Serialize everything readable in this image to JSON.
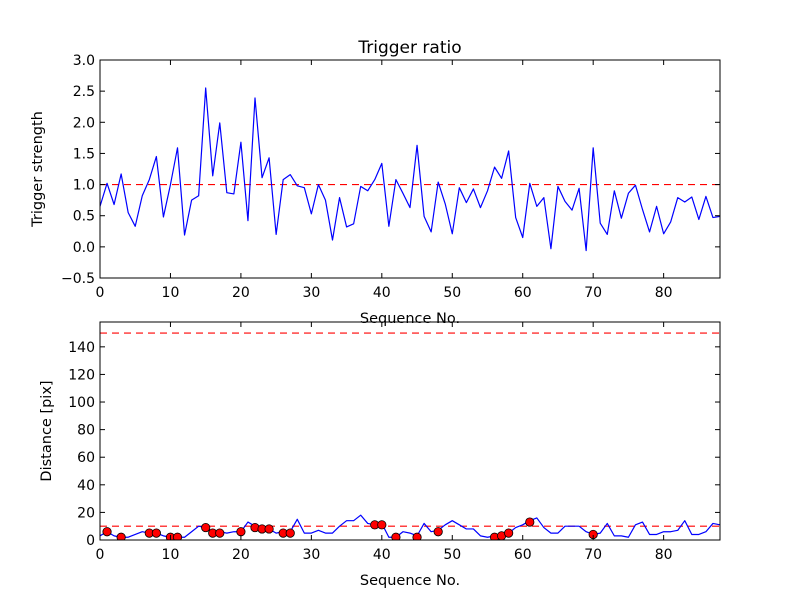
{
  "chart_data": [
    {
      "type": "line",
      "title": "Trigger ratio",
      "xlabel": "Sequence No.",
      "ylabel": "Trigger strength",
      "xlim": [
        0,
        88
      ],
      "ylim": [
        -0.5,
        3.0
      ],
      "xticks": [
        0,
        10,
        20,
        30,
        40,
        50,
        60,
        70,
        80
      ],
      "xtick_labels": [
        "0",
        "10",
        "20",
        "30",
        "40",
        "50",
        "60",
        "70",
        "80"
      ],
      "yticks": [
        -0.5,
        0.0,
        0.5,
        1.0,
        1.5,
        2.0,
        2.5,
        3.0
      ],
      "ytick_labels": [
        "−0.5",
        "0.0",
        "0.5",
        "1.0",
        "1.5",
        "2.0",
        "2.5",
        "3.0"
      ],
      "threshold": 1.0,
      "colors": {
        "line": "#0000ff",
        "threshold": "#ff0000"
      },
      "series": [
        {
          "name": "trigger strength",
          "values": [
            0.65,
            1.02,
            0.68,
            1.17,
            0.55,
            0.33,
            0.82,
            1.08,
            1.45,
            0.48,
            1.0,
            1.59,
            0.19,
            0.75,
            0.82,
            2.55,
            1.14,
            1.99,
            0.87,
            0.85,
            1.68,
            0.42,
            2.39,
            1.11,
            1.43,
            0.2,
            1.08,
            1.16,
            0.98,
            0.95,
            0.53,
            1.0,
            0.75,
            0.11,
            0.79,
            0.32,
            0.37,
            0.97,
            0.9,
            1.08,
            1.34,
            0.33,
            1.08,
            0.86,
            0.63,
            1.63,
            0.49,
            0.24,
            1.04,
            0.69,
            0.21,
            0.95,
            0.71,
            0.93,
            0.63,
            0.9,
            1.28,
            1.1,
            1.54,
            0.47,
            0.15,
            1.02,
            0.65,
            0.79,
            -0.03,
            0.97,
            0.73,
            0.59,
            0.94,
            -0.06,
            1.59,
            0.38,
            0.2,
            0.9,
            0.46,
            0.86,
            0.99,
            0.6,
            0.24,
            0.65,
            0.21,
            0.4,
            0.79,
            0.72,
            0.8,
            0.44,
            0.81,
            0.47,
            0.49
          ]
        }
      ]
    },
    {
      "type": "line",
      "title": "",
      "xlabel": "Sequence No.",
      "ylabel": "Distance [pix]",
      "xlim": [
        0,
        88
      ],
      "ylim": [
        0,
        158
      ],
      "xticks": [
        0,
        10,
        20,
        30,
        40,
        50,
        60,
        70,
        80
      ],
      "xtick_labels": [
        "0",
        "10",
        "20",
        "30",
        "40",
        "50",
        "60",
        "70",
        "80"
      ],
      "yticks": [
        0,
        20,
        40,
        60,
        80,
        100,
        120,
        140
      ],
      "ytick_labels": [
        "0",
        "20",
        "40",
        "60",
        "80",
        "100",
        "120",
        "140"
      ],
      "thresholds": [
        10,
        150
      ],
      "colors": {
        "line": "#0000ff",
        "threshold": "#ff0000",
        "marker": "#ff0000"
      },
      "series": [
        {
          "name": "distance",
          "values": [
            3,
            6,
            3,
            2,
            2,
            4,
            6,
            5,
            5,
            3,
            2,
            2,
            2,
            6,
            10,
            9,
            6,
            6,
            5,
            6,
            6,
            13,
            10,
            8,
            8,
            5,
            6,
            6,
            15,
            5,
            5,
            7,
            5,
            5,
            10,
            14,
            14,
            18,
            12,
            11,
            12,
            2,
            2,
            6,
            5,
            3,
            12,
            6,
            7,
            11,
            14,
            11,
            8,
            8,
            3,
            2,
            3,
            4,
            5,
            9,
            11,
            14,
            16,
            9,
            5,
            5,
            10,
            10,
            10,
            6,
            4,
            5,
            12,
            3,
            3,
            2,
            11,
            13,
            4,
            4,
            6,
            6,
            7,
            14,
            4,
            4,
            6,
            12,
            11
          ]
        },
        {
          "name": "marked points",
          "markers": [
            {
              "x": 1,
              "y": 6
            },
            {
              "x": 3,
              "y": 2
            },
            {
              "x": 7,
              "y": 5
            },
            {
              "x": 8,
              "y": 5
            },
            {
              "x": 10,
              "y": 2
            },
            {
              "x": 11,
              "y": 2
            },
            {
              "x": 15,
              "y": 9
            },
            {
              "x": 16,
              "y": 5
            },
            {
              "x": 17,
              "y": 5
            },
            {
              "x": 20,
              "y": 6
            },
            {
              "x": 22,
              "y": 9
            },
            {
              "x": 23,
              "y": 8
            },
            {
              "x": 24,
              "y": 8
            },
            {
              "x": 26,
              "y": 5
            },
            {
              "x": 27,
              "y": 5
            },
            {
              "x": 39,
              "y": 11
            },
            {
              "x": 40,
              "y": 11
            },
            {
              "x": 42,
              "y": 2
            },
            {
              "x": 45,
              "y": 2
            },
            {
              "x": 48,
              "y": 6
            },
            {
              "x": 56,
              "y": 2
            },
            {
              "x": 57,
              "y": 3
            },
            {
              "x": 58,
              "y": 5
            },
            {
              "x": 61,
              "y": 13
            },
            {
              "x": 70,
              "y": 4
            }
          ]
        }
      ]
    }
  ]
}
